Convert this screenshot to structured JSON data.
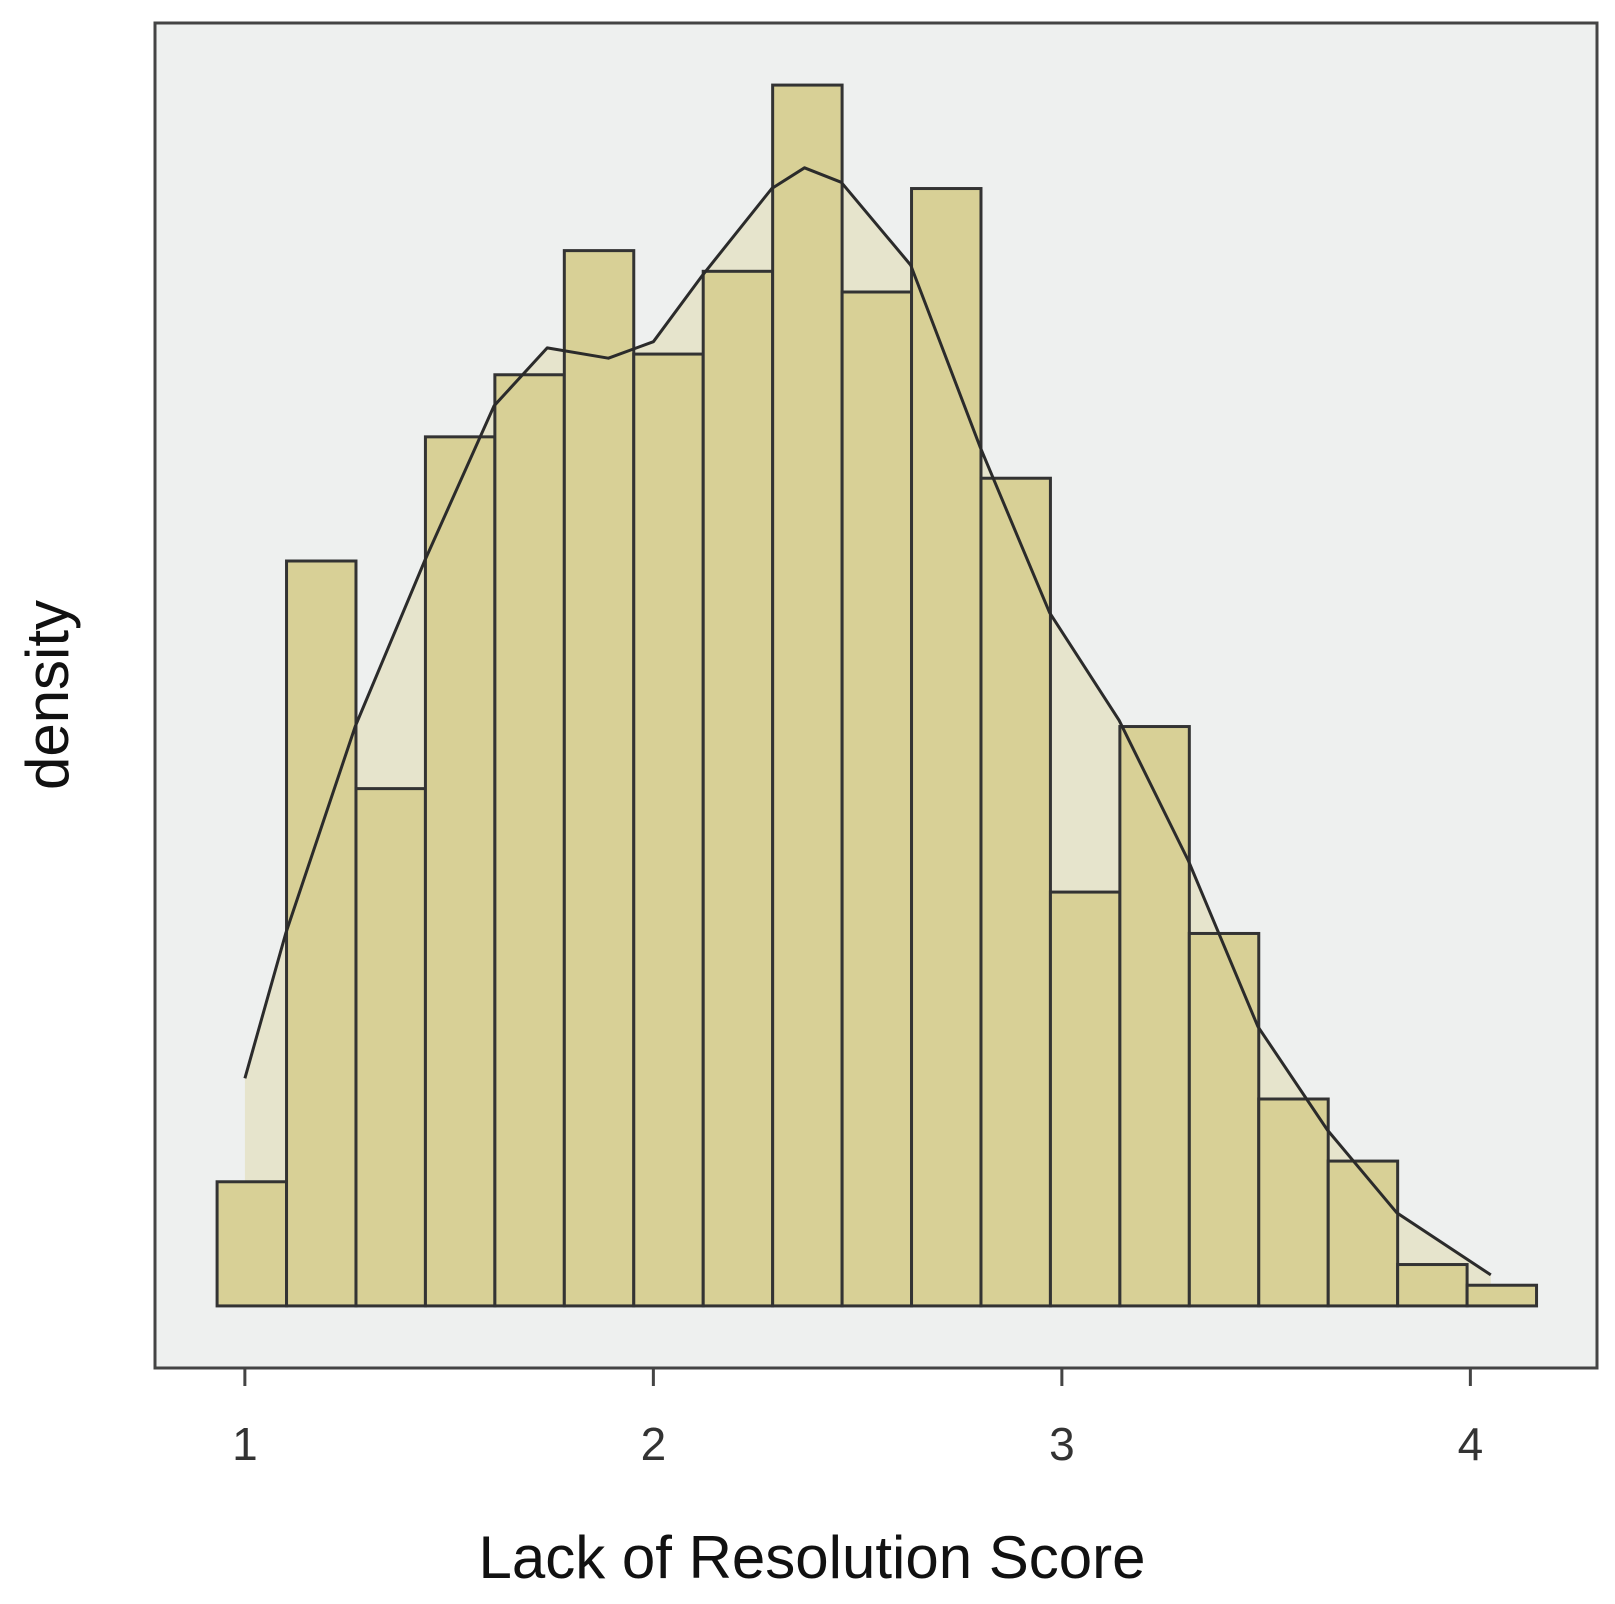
{
  "chart_data": {
    "type": "histogram",
    "x_label": "Lack of Resolution Score",
    "y_label": "density",
    "bins": [
      0.932,
      1.102,
      1.272,
      1.442,
      1.612,
      1.782,
      1.952,
      2.122,
      2.292,
      2.462,
      2.632,
      2.802,
      2.972,
      3.142,
      3.312,
      3.482,
      3.652,
      3.822,
      3.992,
      4.162
    ],
    "values": [
      0.06,
      0.36,
      0.25,
      0.42,
      0.45,
      0.51,
      0.46,
      0.5,
      0.59,
      0.49,
      0.54,
      0.4,
      0.2,
      0.28,
      0.18,
      0.1,
      0.07,
      0.02,
      0.01
    ],
    "color": "#d8d096",
    "density_curve": {
      "x": [
        1.0,
        1.1,
        1.27,
        1.44,
        1.61,
        1.74,
        1.89,
        2.0,
        2.12,
        2.29,
        2.37,
        2.46,
        2.63,
        2.8,
        2.97,
        3.14,
        3.31,
        3.48,
        3.65,
        3.82,
        4.05
      ],
      "y": [
        0.11,
        0.18,
        0.28,
        0.36,
        0.435,
        0.463,
        0.458,
        0.466,
        0.498,
        0.54,
        0.55,
        0.543,
        0.503,
        0.415,
        0.335,
        0.283,
        0.215,
        0.135,
        0.085,
        0.045,
        0.015
      ],
      "color": "#2b2b2b",
      "fill": "#e6e4cc"
    },
    "xlim": [
      0.78,
      4.31
    ],
    "ylim": [
      -0.03,
      0.62
    ],
    "xticks": [
      1,
      2,
      3,
      4
    ],
    "background": "#eef0ef"
  }
}
